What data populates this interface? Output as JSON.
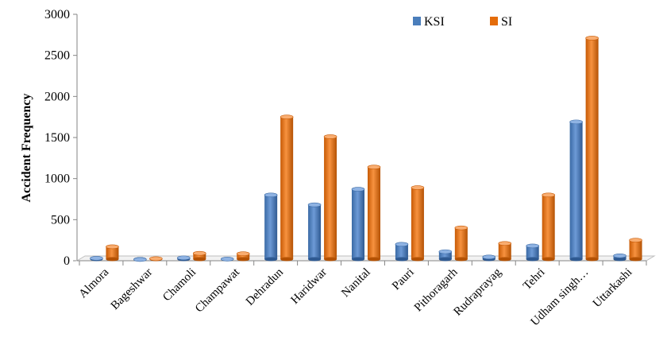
{
  "chart_data": {
    "type": "bar",
    "style": "3d-cylinder",
    "ylabel": "Accident Frequency",
    "xlabel": "",
    "ylim": [
      0,
      3000
    ],
    "yticks": [
      0,
      500,
      1000,
      1500,
      2000,
      2500,
      3000
    ],
    "legend_position": "top-right",
    "grid": false,
    "categories": [
      "Almora",
      "Bageshwar",
      "Chamoli",
      "Champawat",
      "Dehradun",
      "Haridwar",
      "Nanital",
      "Pauri",
      "Pithoragarh",
      "Rudraprayag",
      "Tehri",
      "Udham singh…",
      "Uttarkashi"
    ],
    "series": [
      {
        "name": "KSI",
        "color": "#4a7ebb",
        "values": [
          30,
          15,
          35,
          20,
          800,
          680,
          870,
          200,
          110,
          45,
          180,
          1690,
          60
        ]
      },
      {
        "name": "SI",
        "color": "#e46c0a",
        "values": [
          170,
          25,
          90,
          85,
          1750,
          1510,
          1140,
          890,
          400,
          210,
          800,
          2710,
          250
        ]
      }
    ]
  }
}
